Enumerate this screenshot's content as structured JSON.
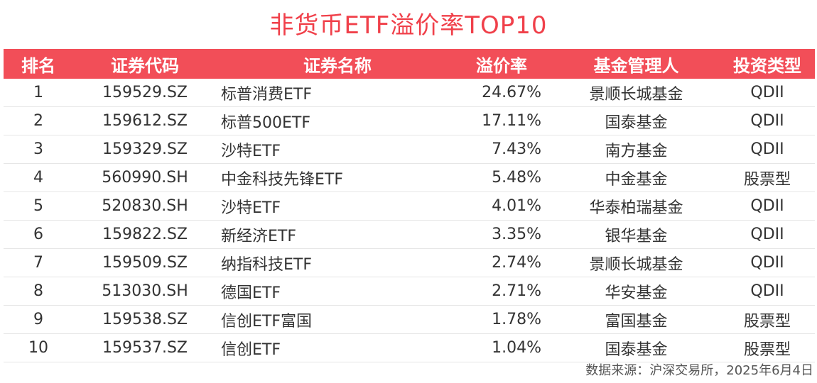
{
  "title": "非货币ETF溢价率TOP10",
  "colors": {
    "header_bg": "#f24e58",
    "title": "#f0404a"
  },
  "columns": [
    "排名",
    "证券代码",
    "证券名称",
    "溢价率",
    "基金管理人",
    "投资类型"
  ],
  "rows": [
    [
      "1",
      "159529.SZ",
      "标普消费ETF",
      "24.67%",
      "景顺长城基金",
      "QDII"
    ],
    [
      "2",
      "159612.SZ",
      "标普500ETF",
      "17.11%",
      "国泰基金",
      "QDII"
    ],
    [
      "3",
      "159329.SZ",
      "沙特ETF",
      "7.43%",
      "南方基金",
      "QDII"
    ],
    [
      "4",
      "560990.SH",
      "中金科技先锋ETF",
      "5.48%",
      "中金基金",
      "股票型"
    ],
    [
      "5",
      "520830.SH",
      "沙特ETF",
      "4.01%",
      "华泰柏瑞基金",
      "QDII"
    ],
    [
      "6",
      "159822.SZ",
      "新经济ETF",
      "3.35%",
      "银华基金",
      "QDII"
    ],
    [
      "7",
      "159509.SZ",
      "纳指科技ETF",
      "2.74%",
      "景顺长城基金",
      "QDII"
    ],
    [
      "8",
      "513030.SH",
      "德国ETF",
      "2.71%",
      "华安基金",
      "QDII"
    ],
    [
      "9",
      "159538.SZ",
      "信创ETF富国",
      "1.78%",
      "富国基金",
      "股票型"
    ],
    [
      "10",
      "159537.SZ",
      "信创ETF",
      "1.04%",
      "国泰基金",
      "股票型"
    ]
  ],
  "source": "数据来源：沪深交易所，2025年6月4日"
}
